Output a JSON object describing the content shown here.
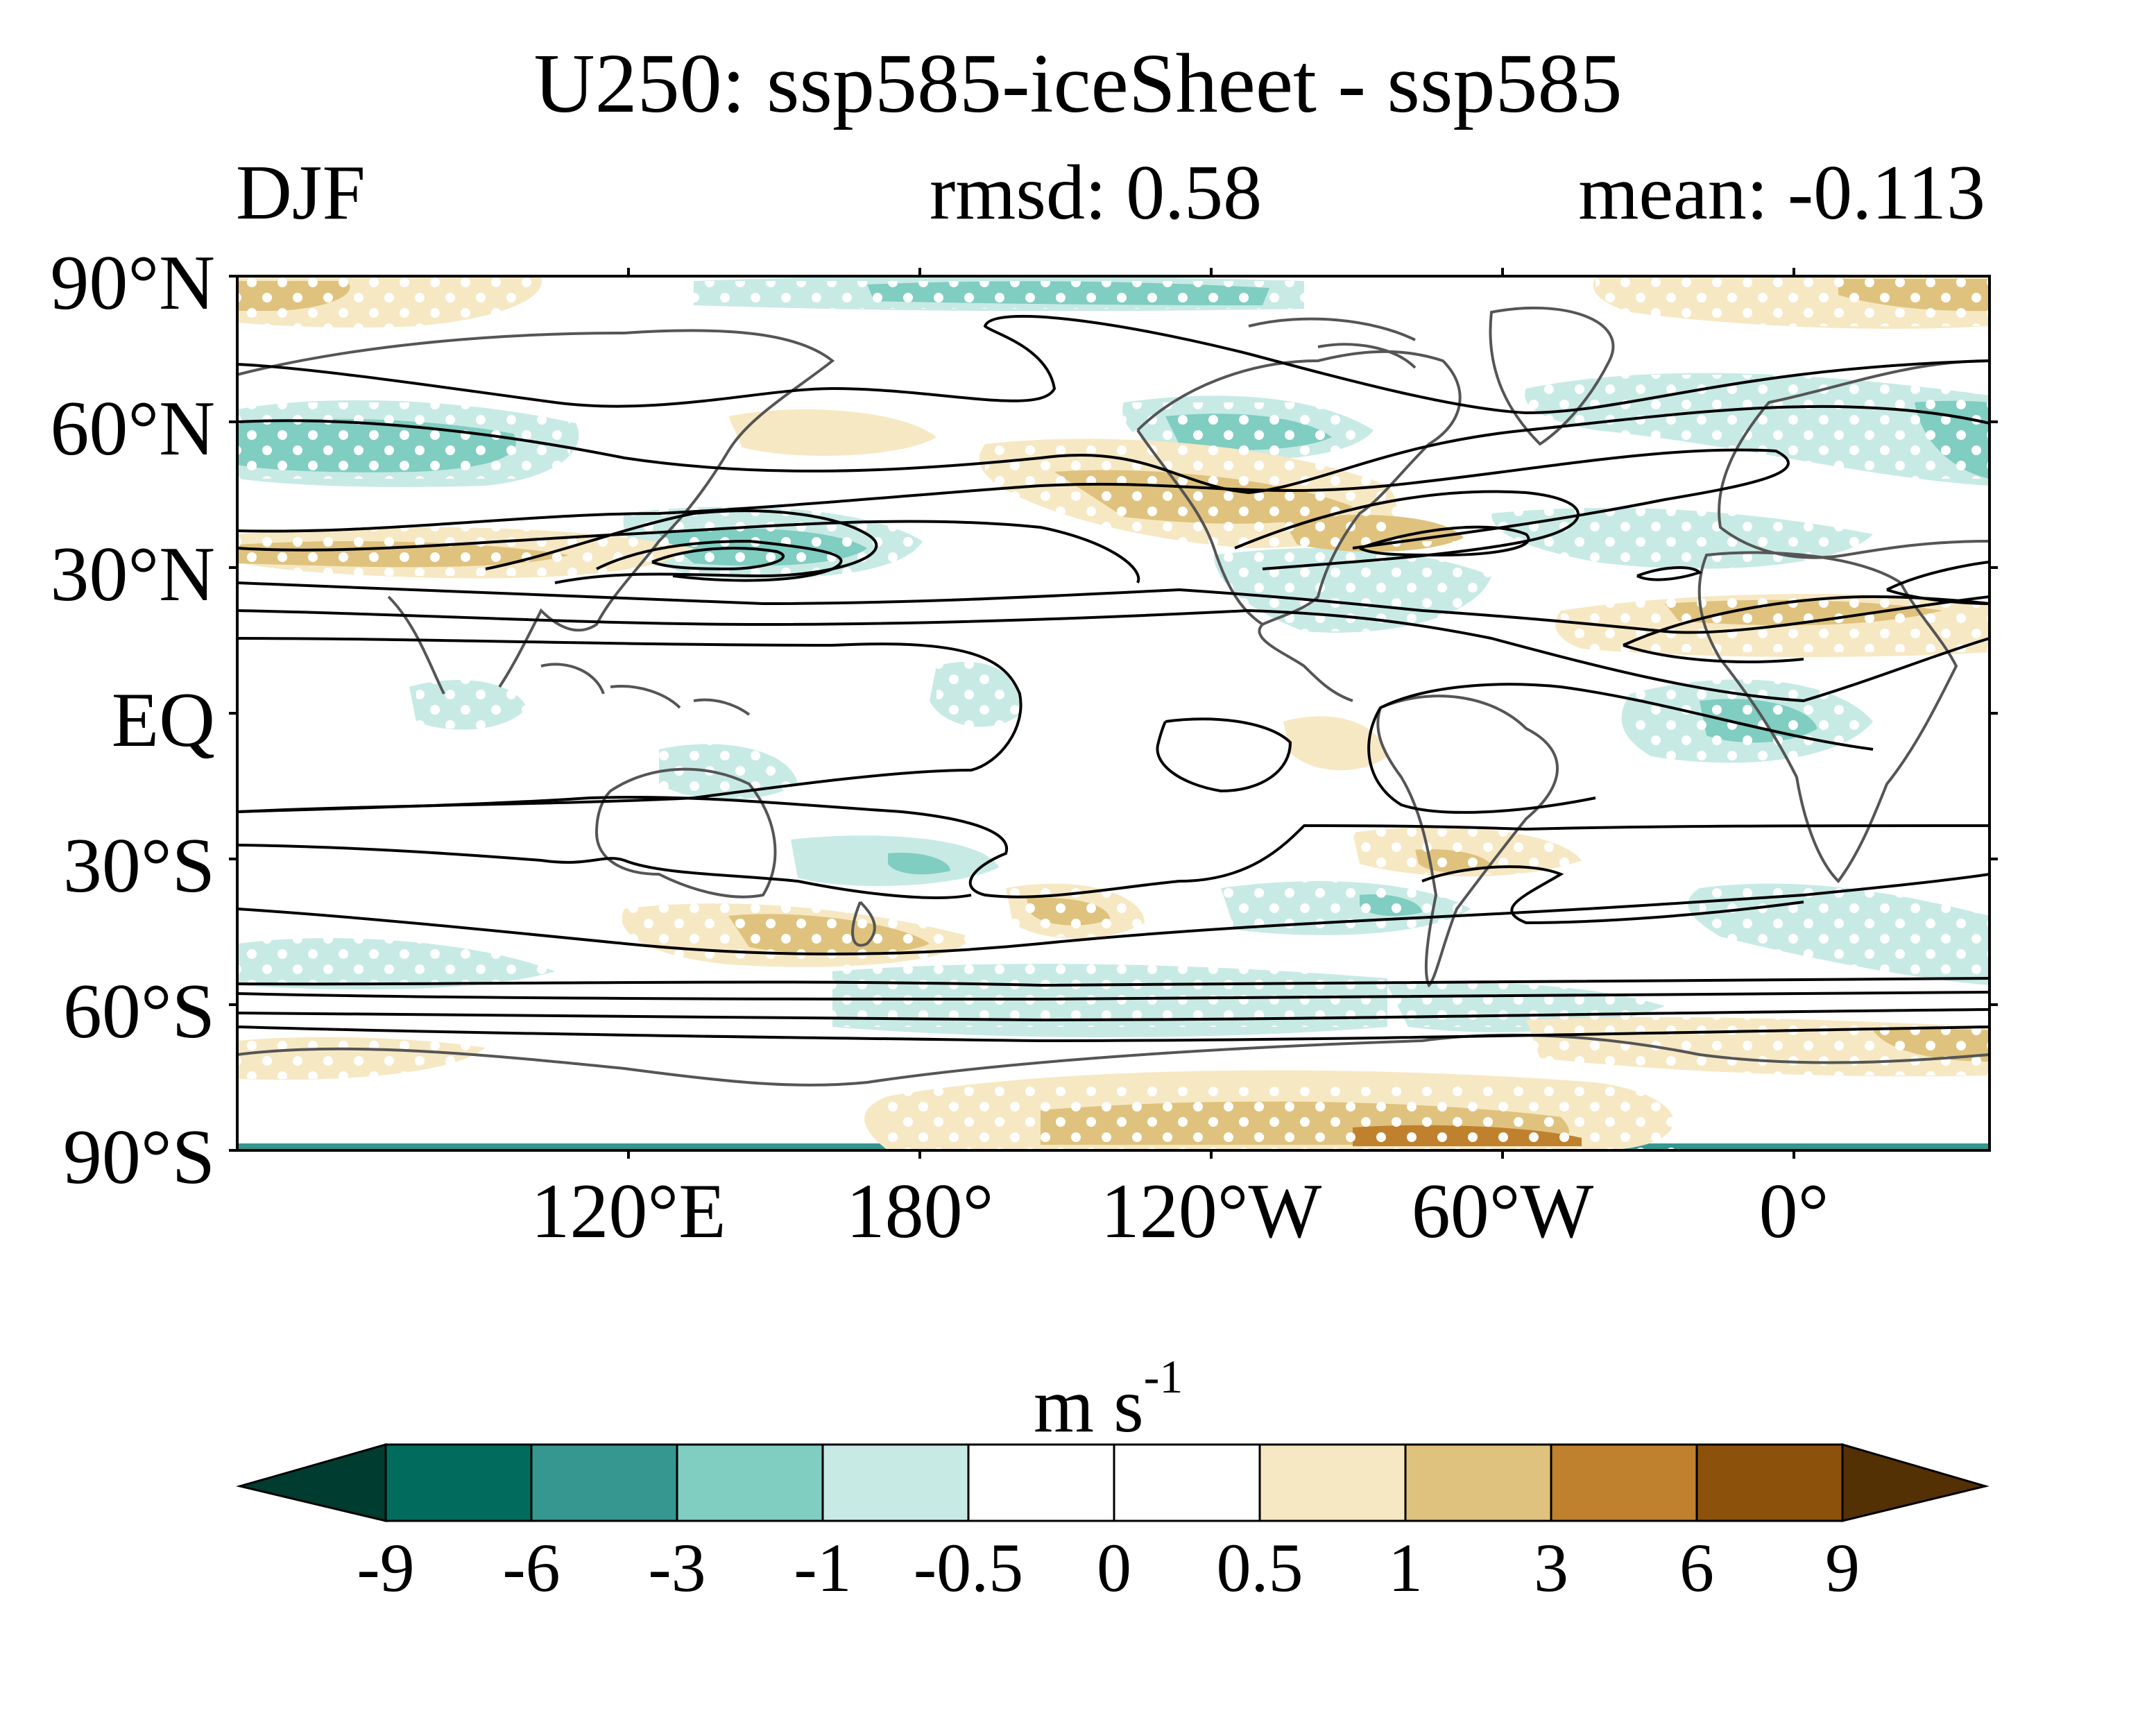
{
  "title": "U250: ssp585-iceSheet - ssp585",
  "season": "DJF",
  "rmsd_text": "rmsd: 0.58",
  "mean_text": "mean: -0.113",
  "lat_labels": [
    "90°N",
    "60°N",
    "30°N",
    "EQ",
    "30°S",
    "60°S",
    "90°S"
  ],
  "lon_labels": [
    "120°E",
    "180°",
    "120°W",
    "60°W",
    "0°"
  ],
  "units": {
    "base": "m s",
    "exponent": "-1"
  },
  "colorbar": {
    "levels": [
      "-9",
      "-6",
      "-3",
      "-1",
      "-0.5",
      "0",
      "0.5",
      "1",
      "3",
      "6",
      "9"
    ],
    "colors": [
      "#003c30",
      "#016c5e",
      "#35978f",
      "#80cdc1",
      "#c7eae5",
      "#ffffff",
      "#ffffff",
      "#f6e8c3",
      "#dfc27d",
      "#bf812d",
      "#8c510a",
      "#543005"
    ]
  },
  "colors": {
    "coast": "#555555",
    "contour": "#000000",
    "stipple": "#ffffff"
  }
}
